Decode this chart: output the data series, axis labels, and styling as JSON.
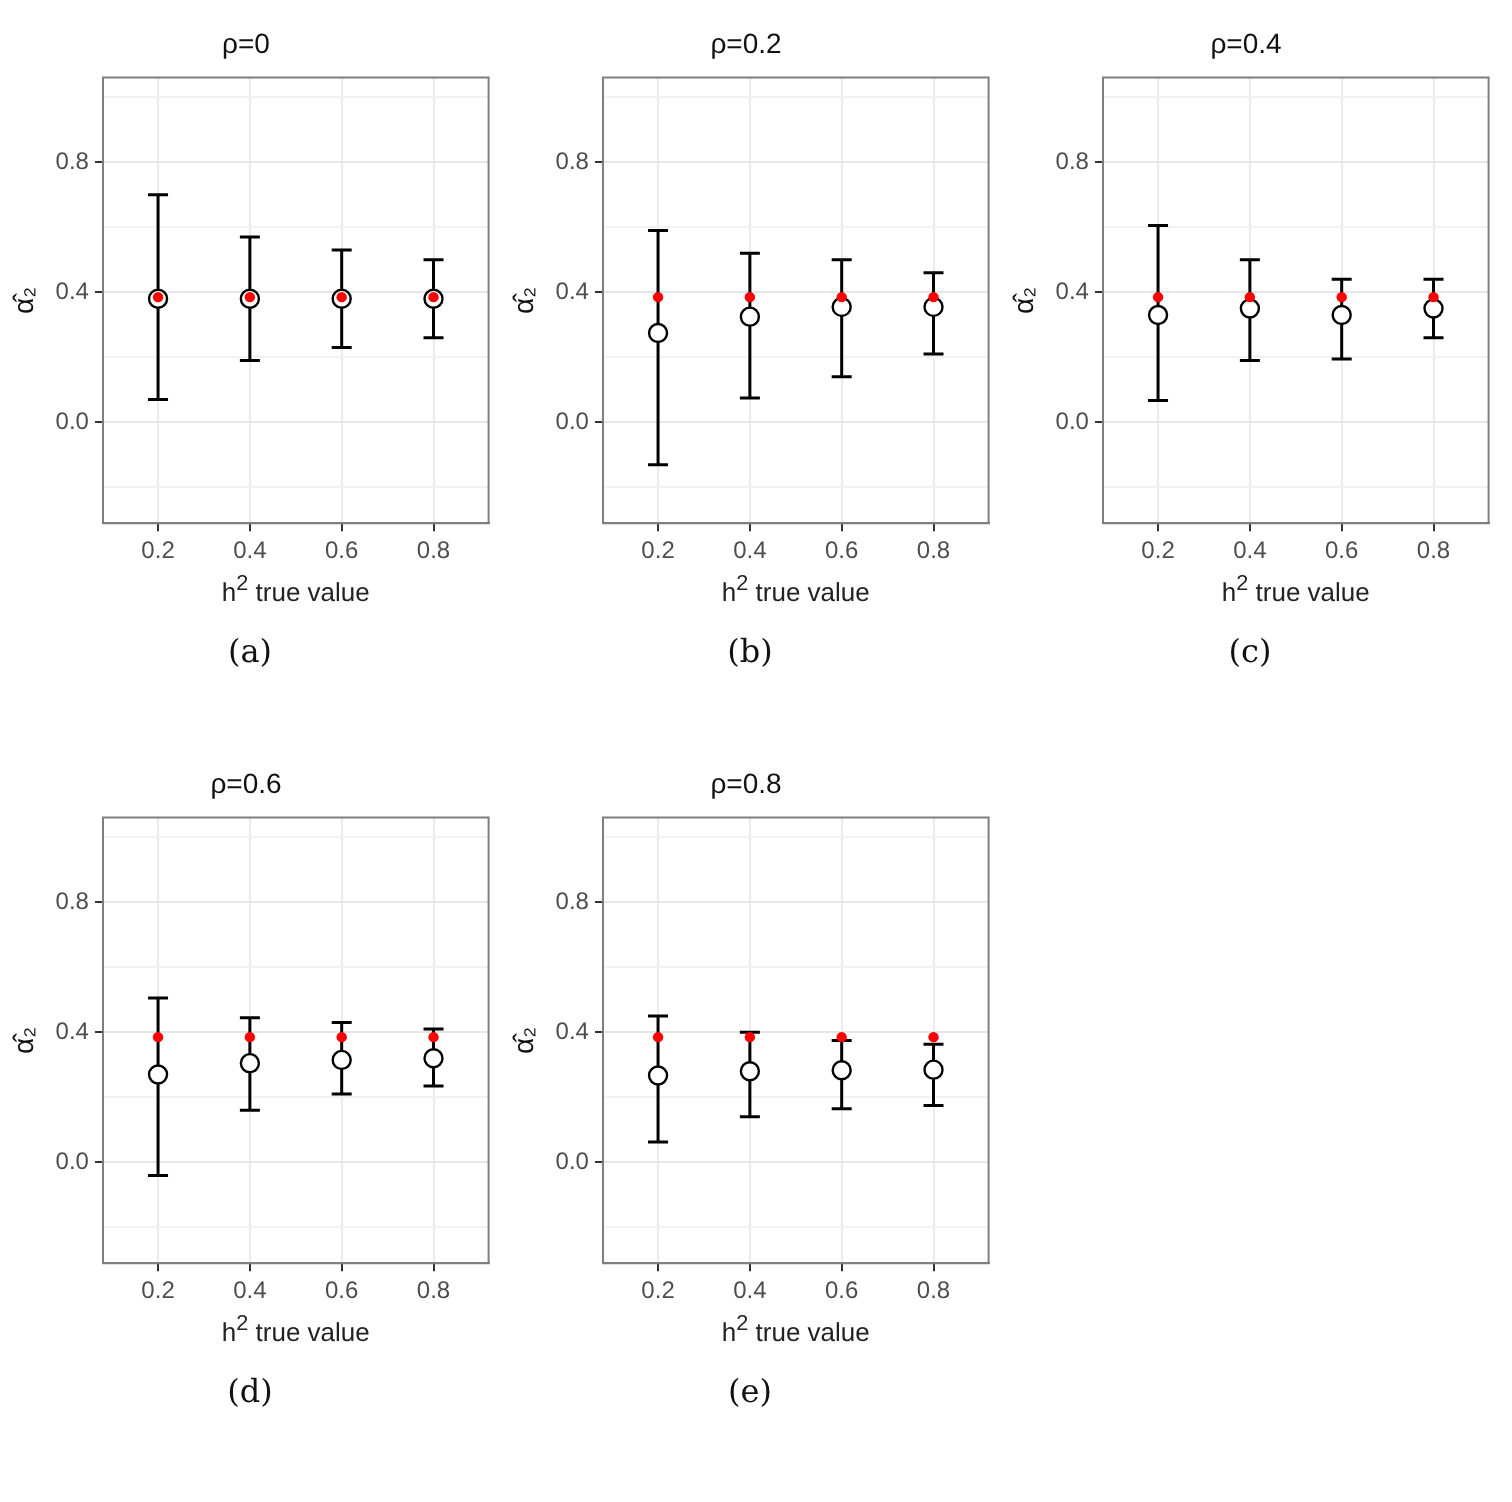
{
  "chart_data": [
    {
      "type": "scatter",
      "title": "ρ=0",
      "xlabel": "h$^{2}$ true value",
      "ylabel": "α̂₂",
      "annotations": [
        "(a)"
      ],
      "xlim": [
        0.08,
        0.92
      ],
      "ylim": [
        -0.31,
        1.06
      ],
      "xticks": [
        0.2,
        0.4,
        0.6,
        0.8
      ],
      "yticks": [
        {
          "value": -0.2,
          "label": null
        },
        {
          "value": 0,
          "label": "0.0"
        },
        {
          "value": 0.2,
          "label": null
        },
        {
          "value": 0.4,
          "label": "0.4"
        },
        {
          "value": 0.6,
          "label": null
        },
        {
          "value": 0.8,
          "label": "0.8"
        },
        {
          "value": 1.0,
          "label": null
        }
      ],
      "grid": true,
      "x": [
        0.2,
        0.4,
        0.6,
        0.8
      ],
      "series": [
        {
          "color": "#000000",
          "marker": "circle",
          "values": [
            0.38,
            0.38,
            0.38,
            0.38
          ],
          "errors": [
            [
              0.07,
              0.7
            ],
            [
              0.19,
              0.57
            ],
            [
              0.23,
              0.53
            ],
            [
              0.26,
              0.5
            ]
          ]
        },
        {
          "color": "#ff0000",
          "marker": "circle",
          "values": [
            0.385,
            0.385,
            0.385,
            0.385
          ]
        }
      ]
    },
    {
      "type": "scatter",
      "title": "ρ=0.2",
      "xlabel": "h$^{2}$ true value",
      "ylabel": "α̂₂",
      "annotations": [
        "(b)"
      ],
      "xlim": [
        0.08,
        0.92
      ],
      "ylim": [
        -0.31,
        1.06
      ],
      "xticks": [
        0.2,
        0.4,
        0.6,
        0.8
      ],
      "yticks": [
        {
          "value": -0.2,
          "label": null
        },
        {
          "value": 0,
          "label": "0.0"
        },
        {
          "value": 0.2,
          "label": null
        },
        {
          "value": 0.4,
          "label": "0.4"
        },
        {
          "value": 0.6,
          "label": null
        },
        {
          "value": 0.8,
          "label": "0.8"
        },
        {
          "value": 1.0,
          "label": null
        }
      ],
      "grid": true,
      "x": [
        0.2,
        0.4,
        0.6,
        0.8
      ],
      "series": [
        {
          "color": "#000000",
          "marker": "circle",
          "values": [
            0.275,
            0.325,
            0.355,
            0.355
          ],
          "errors": [
            [
              -0.13,
              0.59
            ],
            [
              0.075,
              0.52
            ],
            [
              0.14,
              0.5
            ],
            [
              0.21,
              0.46
            ]
          ]
        },
        {
          "color": "#ff0000",
          "marker": "circle",
          "values": [
            0.385,
            0.385,
            0.385,
            0.385
          ]
        }
      ]
    },
    {
      "type": "scatter",
      "title": "ρ=0.4",
      "xlabel": "h$^{2}$ true value",
      "ylabel": "α̂₂",
      "annotations": [
        "(c)"
      ],
      "xlim": [
        0.08,
        0.92
      ],
      "ylim": [
        -0.31,
        1.06
      ],
      "xticks": [
        0.2,
        0.4,
        0.6,
        0.8
      ],
      "yticks": [
        {
          "value": -0.2,
          "label": null
        },
        {
          "value": 0,
          "label": "0.0"
        },
        {
          "value": 0.2,
          "label": null
        },
        {
          "value": 0.4,
          "label": "0.4"
        },
        {
          "value": 0.6,
          "label": null
        },
        {
          "value": 0.8,
          "label": "0.8"
        },
        {
          "value": 1.0,
          "label": null
        }
      ],
      "grid": true,
      "x": [
        0.2,
        0.4,
        0.6,
        0.8
      ],
      "series": [
        {
          "color": "#000000",
          "marker": "circle",
          "values": [
            0.33,
            0.35,
            0.33,
            0.35
          ],
          "errors": [
            [
              0.067,
              0.605
            ],
            [
              0.19,
              0.5
            ],
            [
              0.195,
              0.44
            ],
            [
              0.26,
              0.44
            ]
          ]
        },
        {
          "color": "#ff0000",
          "marker": "circle",
          "values": [
            0.385,
            0.385,
            0.385,
            0.385
          ]
        }
      ]
    },
    {
      "type": "scatter",
      "title": "ρ=0.6",
      "xlabel": "h$^{2}$ true value",
      "ylabel": "α̂₂",
      "annotations": [
        "(d)"
      ],
      "xlim": [
        0.08,
        0.92
      ],
      "ylim": [
        -0.31,
        1.06
      ],
      "xticks": [
        0.2,
        0.4,
        0.6,
        0.8
      ],
      "yticks": [
        {
          "value": -0.2,
          "label": null
        },
        {
          "value": 0,
          "label": "0.0"
        },
        {
          "value": 0.2,
          "label": null
        },
        {
          "value": 0.4,
          "label": "0.4"
        },
        {
          "value": 0.6,
          "label": null
        },
        {
          "value": 0.8,
          "label": "0.8"
        },
        {
          "value": 1.0,
          "label": null
        }
      ],
      "grid": true,
      "x": [
        0.2,
        0.4,
        0.6,
        0.8
      ],
      "series": [
        {
          "color": "#000000",
          "marker": "circle",
          "values": [
            0.27,
            0.305,
            0.315,
            0.32
          ],
          "errors": [
            [
              -0.04,
              0.505
            ],
            [
              0.16,
              0.445
            ],
            [
              0.21,
              0.43
            ],
            [
              0.235,
              0.41
            ]
          ]
        },
        {
          "color": "#ff0000",
          "marker": "circle",
          "values": [
            0.385,
            0.385,
            0.385,
            0.385
          ]
        }
      ]
    },
    {
      "type": "scatter",
      "title": "ρ=0.8",
      "xlabel": "h$^{2}$ true value",
      "ylabel": "α̂₂",
      "annotations": [
        "(e)"
      ],
      "xlim": [
        0.08,
        0.92
      ],
      "ylim": [
        -0.31,
        1.06
      ],
      "xticks": [
        0.2,
        0.4,
        0.6,
        0.8
      ],
      "yticks": [
        {
          "value": -0.2,
          "label": null
        },
        {
          "value": 0,
          "label": "0.0"
        },
        {
          "value": 0.2,
          "label": null
        },
        {
          "value": 0.4,
          "label": "0.4"
        },
        {
          "value": 0.6,
          "label": null
        },
        {
          "value": 0.8,
          "label": "0.8"
        },
        {
          "value": 1.0,
          "label": null
        }
      ],
      "grid": true,
      "x": [
        0.2,
        0.4,
        0.6,
        0.8
      ],
      "series": [
        {
          "color": "#000000",
          "marker": "circle",
          "values": [
            0.267,
            0.28,
            0.283,
            0.285
          ],
          "errors": [
            [
              0.063,
              0.45
            ],
            [
              0.14,
              0.4
            ],
            [
              0.165,
              0.375
            ],
            [
              0.175,
              0.363
            ]
          ]
        },
        {
          "color": "#ff0000",
          "marker": "circle",
          "values": [
            0.385,
            0.385,
            0.385,
            0.385
          ]
        }
      ]
    }
  ]
}
